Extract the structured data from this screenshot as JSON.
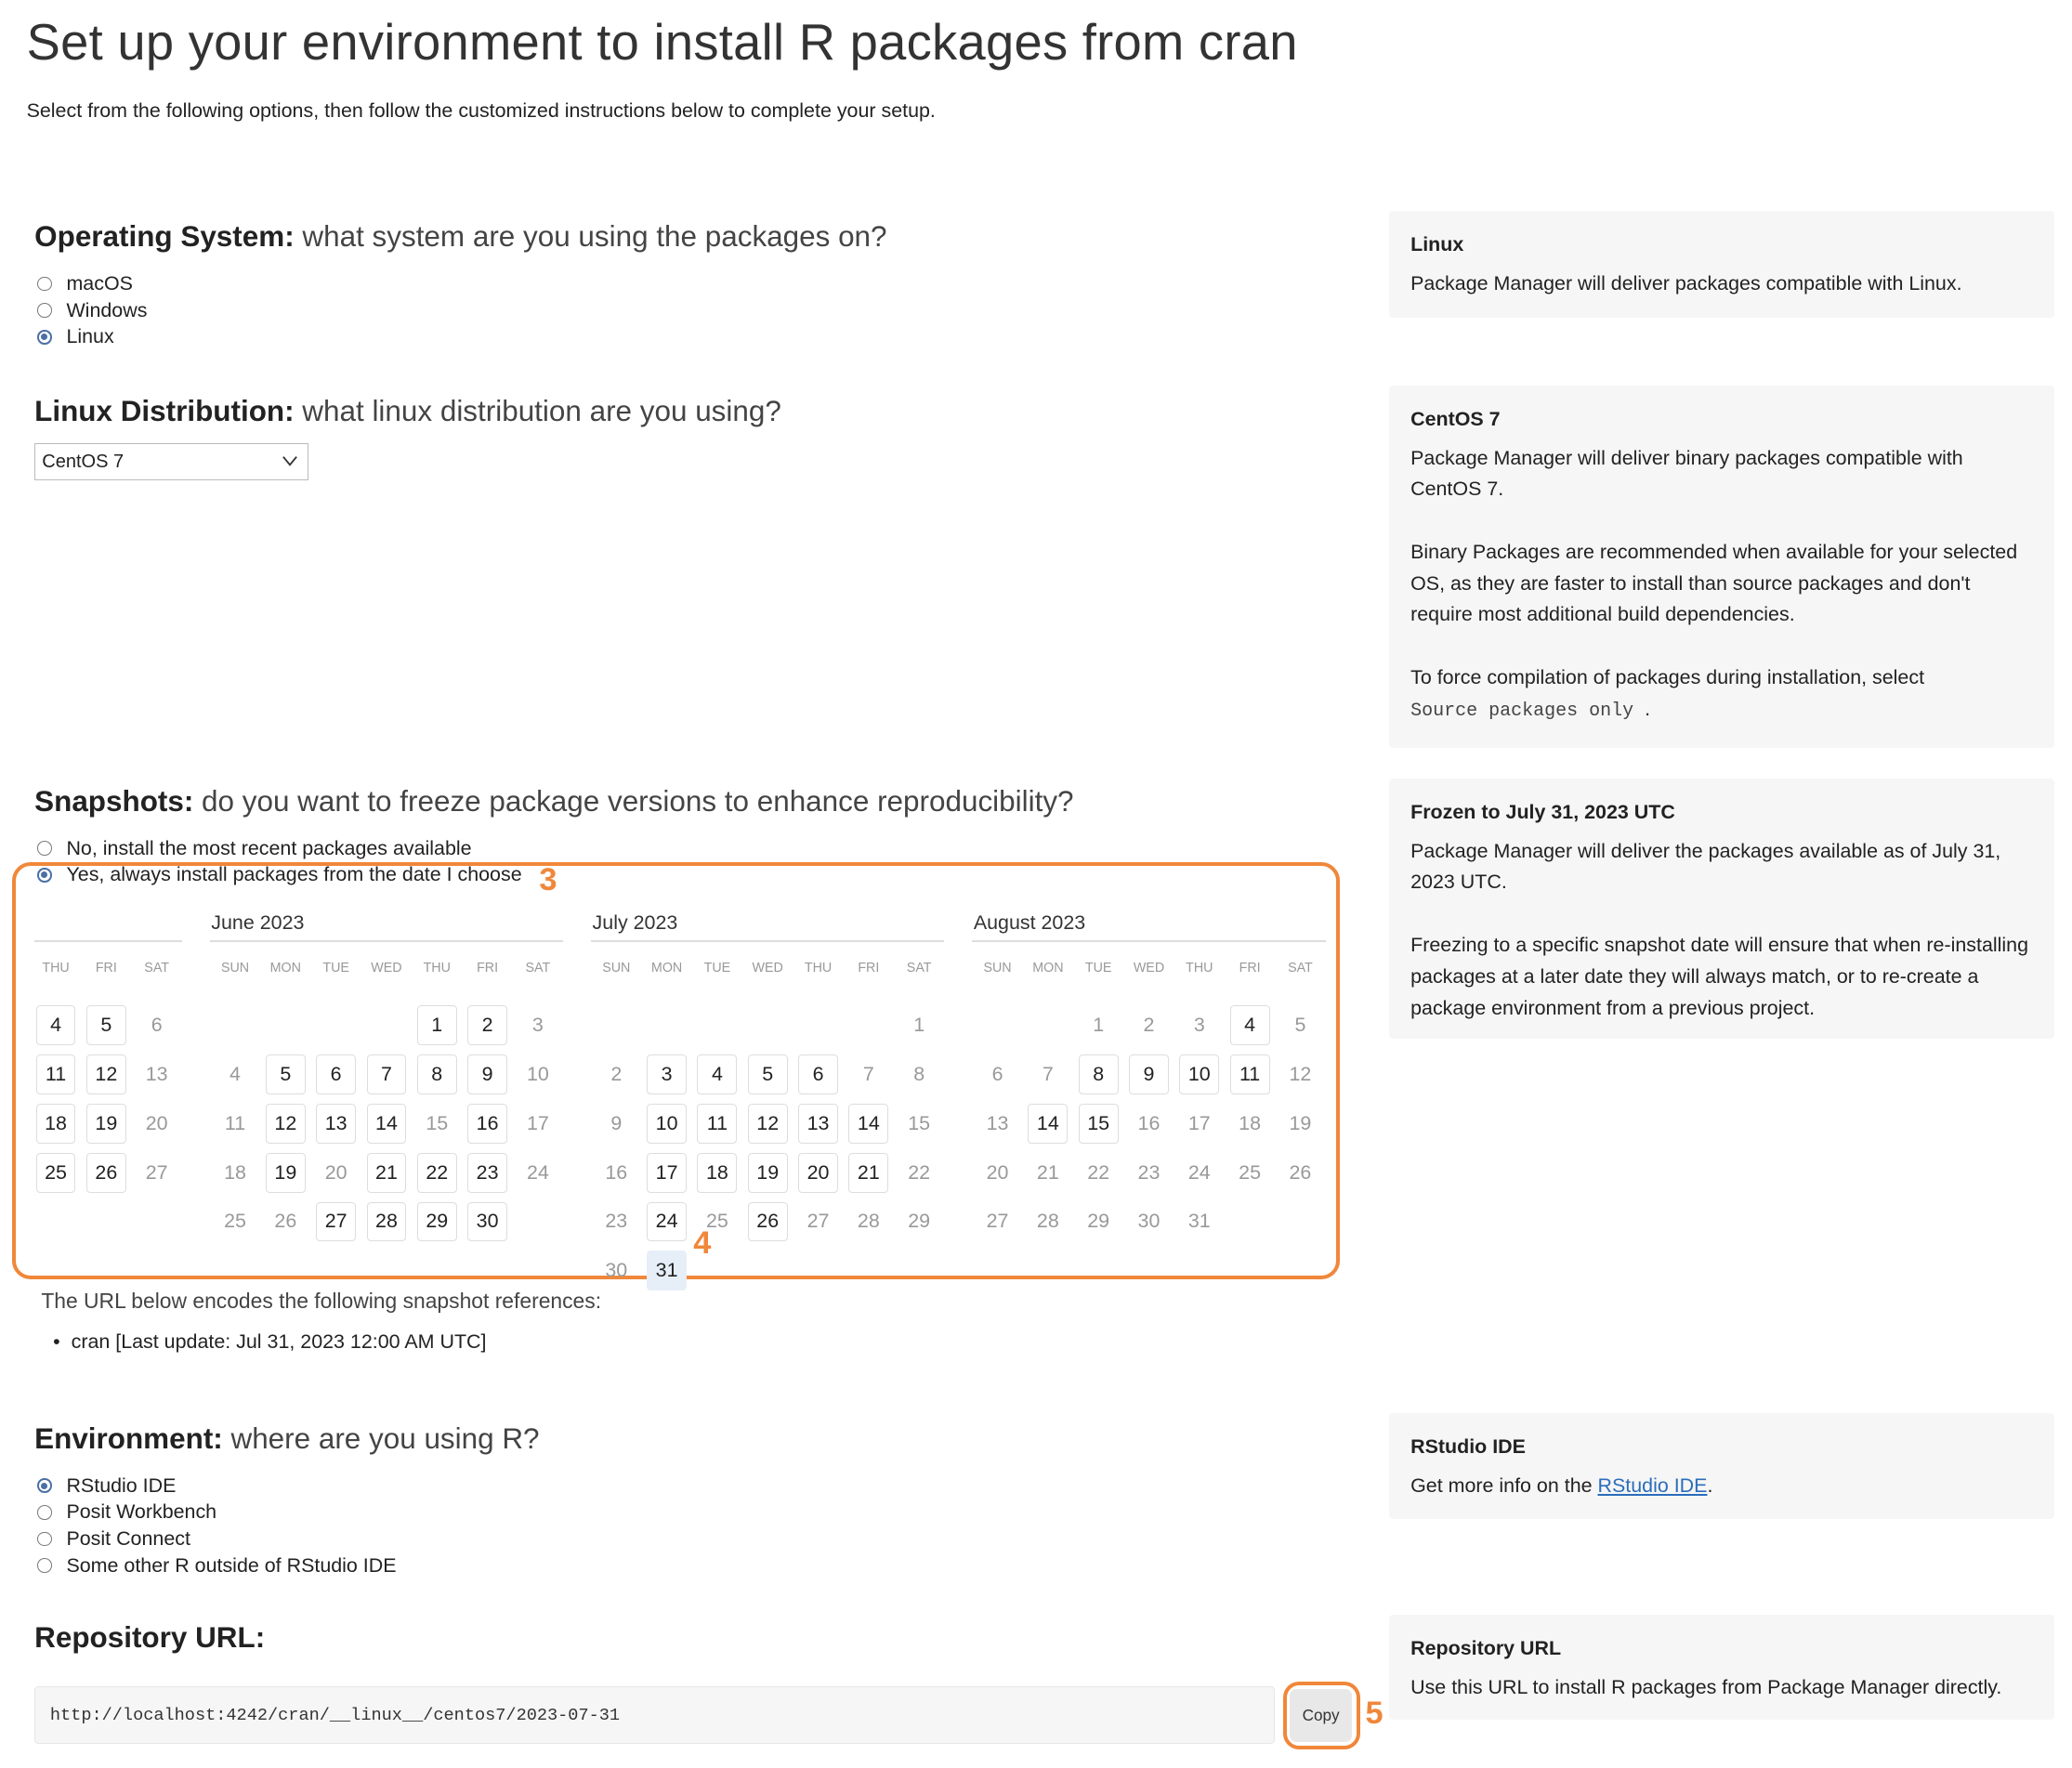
{
  "title": "Set up your environment to install R packages from cran",
  "subtitle": "Select from the following options, then follow the customized instructions below to complete your setup.",
  "os": {
    "heading_bold": "Operating System:",
    "heading_rest": " what system are you using the packages on?",
    "options": [
      {
        "label": "macOS",
        "selected": false
      },
      {
        "label": "Windows",
        "selected": false
      },
      {
        "label": "Linux",
        "selected": true
      }
    ]
  },
  "distro": {
    "heading_bold": "Linux Distribution:",
    "heading_rest": " what linux distribution are you using?",
    "selected": "CentOS 7"
  },
  "snapshots": {
    "heading_bold": "Snapshots:",
    "heading_rest": " do you want to freeze package versions to enhance reproducibility?",
    "options": [
      {
        "label": "No, install the most recent packages available",
        "selected": false
      },
      {
        "label": "Yes, always install packages from the date I choose",
        "selected": true
      }
    ],
    "note": "The URL below encodes the following snapshot references:",
    "references": [
      "cran [Last update: Jul 31, 2023 12:00 AM UTC]"
    ]
  },
  "calendar": {
    "selected_date": "2023-07-31",
    "months": [
      {
        "name": "",
        "weekdays": [
          "THU",
          "FRI",
          "SAT"
        ],
        "weeks": [
          [
            4,
            5,
            6
          ],
          [
            11,
            12,
            13
          ],
          [
            18,
            19,
            20
          ],
          [
            25,
            26,
            27
          ]
        ],
        "available": [
          4,
          5,
          11,
          12,
          18,
          19,
          25,
          26
        ]
      },
      {
        "name": "June 2023",
        "weekdays": [
          "SUN",
          "MON",
          "TUE",
          "WED",
          "THU",
          "FRI",
          "SAT"
        ],
        "weeks": [
          [
            null,
            null,
            null,
            null,
            1,
            2,
            3
          ],
          [
            4,
            5,
            6,
            7,
            8,
            9,
            10
          ],
          [
            11,
            12,
            13,
            14,
            15,
            16,
            17
          ],
          [
            18,
            19,
            20,
            21,
            22,
            23,
            24
          ],
          [
            25,
            26,
            27,
            28,
            29,
            30,
            null
          ]
        ],
        "available": [
          1,
          2,
          5,
          6,
          7,
          8,
          9,
          12,
          13,
          14,
          16,
          19,
          21,
          22,
          23,
          27,
          28,
          29,
          30
        ]
      },
      {
        "name": "July 2023",
        "weekdays": [
          "SUN",
          "MON",
          "TUE",
          "WED",
          "THU",
          "FRI",
          "SAT"
        ],
        "weeks": [
          [
            null,
            null,
            null,
            null,
            null,
            null,
            1
          ],
          [
            2,
            3,
            4,
            5,
            6,
            7,
            8
          ],
          [
            9,
            10,
            11,
            12,
            13,
            14,
            15
          ],
          [
            16,
            17,
            18,
            19,
            20,
            21,
            22
          ],
          [
            23,
            24,
            25,
            26,
            27,
            28,
            29
          ],
          [
            30,
            31,
            null,
            null,
            null,
            null,
            null
          ]
        ],
        "available": [
          3,
          4,
          5,
          6,
          10,
          11,
          12,
          13,
          14,
          17,
          18,
          19,
          20,
          21,
          24,
          26
        ],
        "selected": 31
      },
      {
        "name": "August 2023",
        "weekdays": [
          "SUN",
          "MON",
          "TUE",
          "WED",
          "THU",
          "FRI",
          "SAT"
        ],
        "weeks": [
          [
            null,
            null,
            1,
            2,
            3,
            4,
            5
          ],
          [
            6,
            7,
            8,
            9,
            10,
            11,
            12
          ],
          [
            13,
            14,
            15,
            16,
            17,
            18,
            19
          ],
          [
            20,
            21,
            22,
            23,
            24,
            25,
            26
          ],
          [
            27,
            28,
            29,
            30,
            31,
            null,
            null
          ]
        ],
        "available": [
          4,
          8,
          9,
          10,
          11,
          14,
          15
        ]
      }
    ]
  },
  "environment": {
    "heading_bold": "Environment:",
    "heading_rest": " where are you using R?",
    "options": [
      {
        "label": "RStudio IDE",
        "selected": true
      },
      {
        "label": "Posit Workbench",
        "selected": false
      },
      {
        "label": "Posit Connect",
        "selected": false
      },
      {
        "label": "Some other R outside of RStudio IDE",
        "selected": false
      }
    ]
  },
  "repository": {
    "heading": "Repository URL:",
    "url": "http://localhost:4242/cran/__linux__/centos7/2023-07-31",
    "copy_label": "Copy"
  },
  "annotations": {
    "a3": "3",
    "a4": "4",
    "a5": "5"
  },
  "panels": {
    "linux": {
      "title": "Linux",
      "text": "Package Manager will deliver packages compatible with Linux."
    },
    "centos": {
      "title": "CentOS 7",
      "p1": "Package Manager will deliver binary packages compatible with CentOS 7.",
      "p2": "Binary Packages are recommended when available for your selected OS, as they are faster to install than source packages and don't require most additional build dependencies.",
      "p3_pre": "To force compilation of packages during installation, select",
      "p3_code": " Source packages only ",
      "p3_post": "."
    },
    "frozen": {
      "title": "Frozen to July 31, 2023 UTC",
      "p1": "Package Manager will deliver the packages available as of July 31, 2023 UTC.",
      "p2": "Freezing to a specific snapshot date will ensure that when re-installing packages at a later date they will always match, or to re-create a package environment from a previous project."
    },
    "rstudio": {
      "title": "RStudio IDE",
      "text_pre": "Get more info on the ",
      "link": "RStudio IDE",
      "text_post": "."
    },
    "repo": {
      "title": "Repository URL",
      "text": "Use this URL to install R packages from Package Manager directly."
    }
  },
  "colors": {
    "accent": "#4a6fa5",
    "annotation": "#f0873a",
    "panel_bg": "#f6f6f6",
    "selected_day_bg": "#e6eef8"
  }
}
